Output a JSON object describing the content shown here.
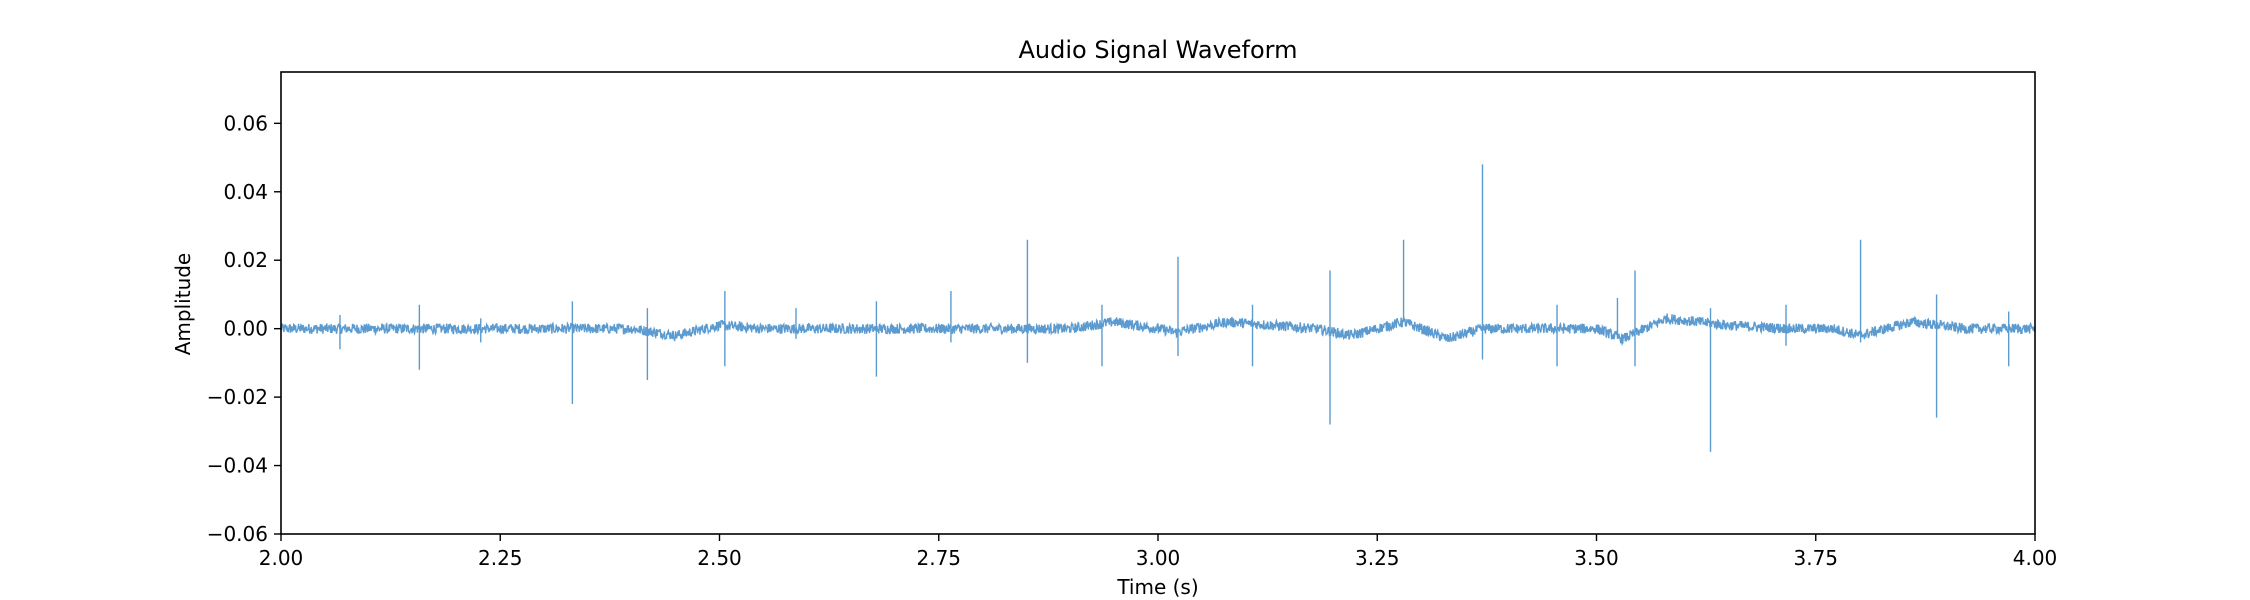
{
  "chart_data": {
    "type": "line",
    "title": "Audio Signal Waveform",
    "xlabel": "Time (s)",
    "ylabel": "Amplitude",
    "xlim": [
      2.0,
      4.0
    ],
    "ylim": [
      -0.06,
      0.075
    ],
    "x_ticks": [
      2.0,
      2.25,
      2.5,
      2.75,
      3.0,
      3.25,
      3.5,
      3.75,
      4.0
    ],
    "x_tick_labels": [
      "2.00",
      "2.25",
      "2.50",
      "2.75",
      "3.00",
      "3.25",
      "3.50",
      "3.75",
      "4.00"
    ],
    "y_ticks": [
      -0.06,
      -0.04,
      -0.02,
      0.0,
      0.02,
      0.04,
      0.06
    ],
    "y_tick_labels": [
      "−0.06",
      "−0.04",
      "−0.02",
      "0.00",
      "0.02",
      "0.04",
      "0.06"
    ],
    "grid": false,
    "legend": false,
    "color": "#5b9bd0",
    "series": [
      {
        "spikes": [
          [
            2.067,
            0.004,
            -0.006
          ],
          [
            2.158,
            0.007,
            -0.012
          ],
          [
            2.228,
            0.003,
            -0.004
          ],
          [
            2.332,
            0.008,
            -0.022
          ],
          [
            2.418,
            0.006,
            -0.015
          ],
          [
            2.506,
            0.011,
            -0.011
          ],
          [
            2.587,
            0.006,
            -0.003
          ],
          [
            2.679,
            0.008,
            -0.014
          ],
          [
            2.764,
            0.011,
            -0.004
          ],
          [
            2.851,
            0.026,
            -0.01
          ],
          [
            2.936,
            0.007,
            -0.011
          ],
          [
            3.023,
            0.021,
            -0.008
          ],
          [
            3.108,
            0.007,
            -0.011
          ],
          [
            3.196,
            0.017,
            -0.028
          ],
          [
            3.28,
            0.026,
            0.003
          ],
          [
            3.37,
            0.048,
            -0.009
          ],
          [
            3.455,
            0.007,
            -0.011
          ],
          [
            3.524,
            0.009,
            -0.003
          ],
          [
            3.544,
            0.017,
            -0.011
          ],
          [
            3.63,
            0.006,
            -0.036
          ],
          [
            3.716,
            0.007,
            -0.005
          ],
          [
            3.801,
            0.026,
            -0.004
          ],
          [
            3.888,
            0.01,
            -0.026
          ],
          [
            3.97,
            0.005,
            -0.011
          ]
        ],
        "drift": [
          [
            2.0,
            0.0
          ],
          [
            2.4,
            0.0
          ],
          [
            2.45,
            -0.002
          ],
          [
            2.5,
            0.001
          ],
          [
            2.55,
            0.0
          ],
          [
            2.9,
            0.0
          ],
          [
            2.95,
            0.002
          ],
          [
            3.0,
            0.0
          ],
          [
            3.02,
            -0.001
          ],
          [
            3.08,
            0.002
          ],
          [
            3.18,
            0.0
          ],
          [
            3.22,
            -0.002
          ],
          [
            3.28,
            0.002
          ],
          [
            3.3,
            0.0
          ],
          [
            3.33,
            -0.003
          ],
          [
            3.37,
            0.0
          ],
          [
            3.45,
            0.0
          ],
          [
            3.5,
            0.0
          ],
          [
            3.53,
            -0.003
          ],
          [
            3.58,
            0.003
          ],
          [
            3.65,
            0.001
          ],
          [
            3.72,
            0.0
          ],
          [
            3.77,
            0.0
          ],
          [
            3.8,
            -0.002
          ],
          [
            3.86,
            0.002
          ],
          [
            3.92,
            0.0
          ],
          [
            4.0,
            0.0
          ]
        ],
        "noise_amplitude": 0.0015
      }
    ]
  }
}
